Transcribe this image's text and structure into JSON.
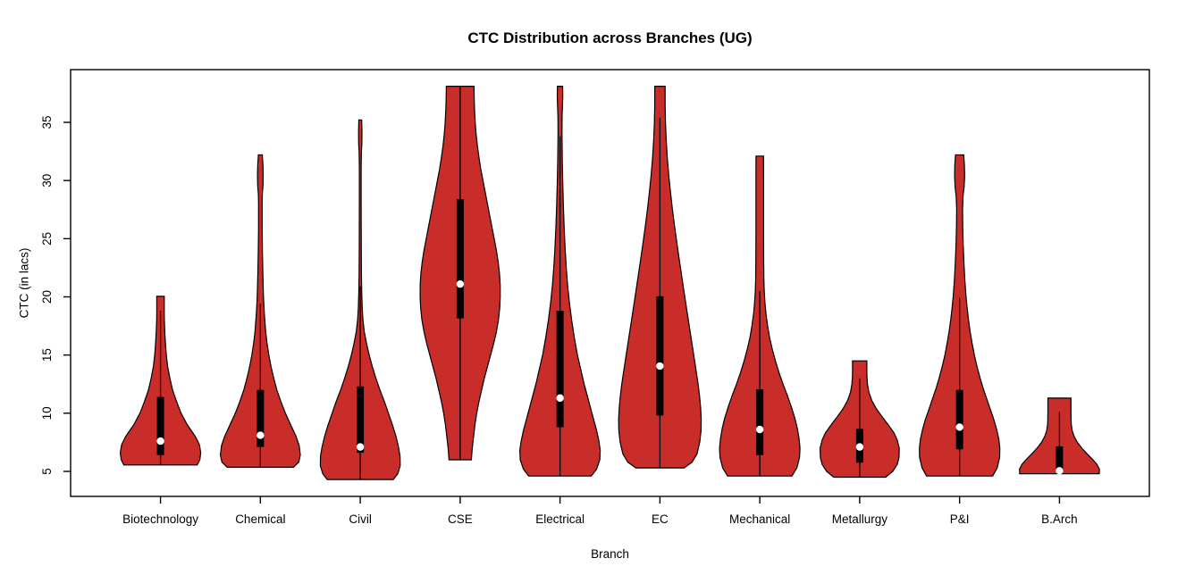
{
  "chart_data": {
    "type": "violin",
    "title": "CTC Distribution across Branches (UG)",
    "xlabel": "Branch",
    "ylabel": "CTC (in lacs)",
    "ylim": [
      2.85,
      39.53
    ],
    "yticks": [
      5,
      10,
      15,
      20,
      25,
      30,
      35
    ],
    "grid": false,
    "legend": "none",
    "categories": [
      "Biotechnology",
      "Chemical",
      "Civil",
      "CSE",
      "Electrical",
      "EC",
      "Mechanical",
      "Metallurgy",
      "P&I",
      "B.Arch"
    ],
    "colors": {
      "violin_fill": "#C82D2A",
      "violin_outline": "#000000",
      "box_fill": "#000000",
      "median_dot": "#FFFFFF",
      "axis": "#000000",
      "background": "#FFFFFF"
    },
    "violins": [
      {
        "label": "Biotechnology",
        "min": 5.55,
        "max": 20.05,
        "q1": 6.4,
        "median": 7.6,
        "q3": 11.4,
        "whisker_low": 5.55,
        "whisker_high": 18.8,
        "profile": [
          [
            5.55,
            41
          ],
          [
            6.0,
            44
          ],
          [
            6.6,
            45
          ],
          [
            7.3,
            43.5
          ],
          [
            8.0,
            39
          ],
          [
            9.0,
            30
          ],
          [
            10.0,
            23
          ],
          [
            11.0,
            18
          ],
          [
            12.0,
            13.5
          ],
          [
            13.0,
            10.5
          ],
          [
            14.0,
            8
          ],
          [
            15.0,
            6.5
          ],
          [
            16.0,
            5.5
          ],
          [
            17.0,
            4.8
          ],
          [
            18.0,
            4.3
          ],
          [
            18.4,
            4.2
          ],
          [
            20.05,
            4.2
          ]
        ]
      },
      {
        "label": "Chemical",
        "min": 5.35,
        "max": 32.2,
        "q1": 7.1,
        "median": 8.1,
        "q3": 12.0,
        "whisker_low": 5.35,
        "whisker_high": 19.4,
        "profile": [
          [
            5.35,
            37
          ],
          [
            5.8,
            43
          ],
          [
            6.4,
            44.7
          ],
          [
            7.2,
            43.5
          ],
          [
            8.0,
            40
          ],
          [
            9.0,
            34
          ],
          [
            10.0,
            28
          ],
          [
            11.0,
            23
          ],
          [
            12.0,
            18.5
          ],
          [
            13.0,
            15
          ],
          [
            14.0,
            12
          ],
          [
            15.0,
            9.5
          ],
          [
            16.0,
            7.5
          ],
          [
            17.0,
            6
          ],
          [
            18.5,
            4.5
          ],
          [
            20.0,
            3.5
          ],
          [
            22.0,
            2.8
          ],
          [
            24.0,
            2.3
          ],
          [
            26.0,
            2.0
          ],
          [
            28.0,
            2.0
          ],
          [
            28.8,
            2.2
          ],
          [
            29.6,
            3.0
          ],
          [
            30.6,
            3.2
          ],
          [
            31.5,
            2.8
          ],
          [
            32.2,
            2.2
          ]
        ]
      },
      {
        "label": "Civil",
        "min": 4.3,
        "max": 35.2,
        "q1": 6.6,
        "median": 7.1,
        "q3": 12.3,
        "whisker_low": 4.3,
        "whisker_high": 20.9,
        "profile": [
          [
            4.3,
            37
          ],
          [
            4.8,
            42
          ],
          [
            5.5,
            44.7
          ],
          [
            6.3,
            44.5
          ],
          [
            7.0,
            43
          ],
          [
            8.0,
            40
          ],
          [
            9.0,
            36
          ],
          [
            10.0,
            31.5
          ],
          [
            11.0,
            27
          ],
          [
            12.0,
            22
          ],
          [
            13.0,
            17.5
          ],
          [
            14.0,
            13.5
          ],
          [
            15.0,
            10
          ],
          [
            16.0,
            7
          ],
          [
            17.0,
            4.5
          ],
          [
            18.0,
            3.0
          ],
          [
            19.0,
            2.2
          ],
          [
            20.5,
            1.6
          ],
          [
            22.0,
            1.3
          ],
          [
            25.0,
            1.1
          ],
          [
            28.0,
            1.0
          ],
          [
            31.0,
            1.0
          ],
          [
            32.5,
            1.3
          ],
          [
            33.2,
            1.8
          ],
          [
            34.2,
            1.9
          ],
          [
            35.2,
            1.6
          ]
        ]
      },
      {
        "label": "CSE",
        "min": 6.0,
        "max": 38.1,
        "q1": 18.15,
        "median": 21.1,
        "q3": 28.4,
        "whisker_low": 6.0,
        "whisker_high": 38.1,
        "profile": [
          [
            6.0,
            12.5
          ],
          [
            7.0,
            13.5
          ],
          [
            8.0,
            15
          ],
          [
            9.0,
            16.5
          ],
          [
            10.0,
            18.5
          ],
          [
            11.0,
            21
          ],
          [
            12.0,
            24
          ],
          [
            13.0,
            27
          ],
          [
            14.0,
            30.5
          ],
          [
            15.0,
            34
          ],
          [
            16.0,
            37.5
          ],
          [
            17.0,
            40.5
          ],
          [
            18.0,
            42.8
          ],
          [
            19.0,
            44.2
          ],
          [
            20.0,
            44.8
          ],
          [
            21.0,
            44.8
          ],
          [
            22.0,
            44
          ],
          [
            23.0,
            42.5
          ],
          [
            24.0,
            40.5
          ],
          [
            25.0,
            38
          ],
          [
            26.0,
            35.5
          ],
          [
            27.0,
            33
          ],
          [
            28.0,
            30.5
          ],
          [
            29.0,
            28
          ],
          [
            30.0,
            25.5
          ],
          [
            31.0,
            23
          ],
          [
            32.0,
            21
          ],
          [
            33.0,
            19.2
          ],
          [
            34.0,
            17.8
          ],
          [
            35.0,
            16.8
          ],
          [
            36.0,
            16.1
          ],
          [
            37.0,
            15.7
          ],
          [
            38.1,
            15.5
          ]
        ]
      },
      {
        "label": "Electrical",
        "min": 4.6,
        "max": 38.1,
        "q1": 8.8,
        "median": 11.3,
        "q3": 18.8,
        "whisker_low": 4.6,
        "whisker_high": 33.8,
        "profile": [
          [
            4.6,
            35
          ],
          [
            5.2,
            41
          ],
          [
            6.0,
            44.5
          ],
          [
            6.8,
            45
          ],
          [
            7.6,
            43.5
          ],
          [
            8.5,
            41
          ],
          [
            9.5,
            37.5
          ],
          [
            10.5,
            34
          ],
          [
            11.5,
            30.5
          ],
          [
            12.5,
            27
          ],
          [
            13.5,
            24
          ],
          [
            15.0,
            19.5
          ],
          [
            16.5,
            16
          ],
          [
            18.0,
            13
          ],
          [
            19.5,
            10.5
          ],
          [
            21.0,
            8.5
          ],
          [
            22.5,
            7
          ],
          [
            24.0,
            5.8
          ],
          [
            26.0,
            4.6
          ],
          [
            28.0,
            3.7
          ],
          [
            30.0,
            3.0
          ],
          [
            32.0,
            2.5
          ],
          [
            34.0,
            2.2
          ],
          [
            35.5,
            2.3
          ],
          [
            36.5,
            2.8
          ],
          [
            37.3,
            3.1
          ],
          [
            38.1,
            2.9
          ]
        ]
      },
      {
        "label": "EC",
        "min": 5.3,
        "max": 38.1,
        "q1": 9.8,
        "median": 14.05,
        "q3": 20.05,
        "whisker_low": 5.3,
        "whisker_high": 35.4,
        "profile": [
          [
            5.3,
            27
          ],
          [
            5.8,
            36
          ],
          [
            6.5,
            41.5
          ],
          [
            7.5,
            44.5
          ],
          [
            8.5,
            46
          ],
          [
            9.5,
            46.2
          ],
          [
            10.5,
            45.5
          ],
          [
            11.5,
            44.3
          ],
          [
            12.5,
            42.7
          ],
          [
            14.0,
            39.8
          ],
          [
            15.5,
            36.8
          ],
          [
            17.0,
            33.8
          ],
          [
            18.5,
            30.8
          ],
          [
            20.0,
            27.8
          ],
          [
            21.5,
            24.9
          ],
          [
            23.0,
            22
          ],
          [
            24.5,
            19.2
          ],
          [
            26.0,
            16.5
          ],
          [
            27.5,
            14
          ],
          [
            29.0,
            11.8
          ],
          [
            30.5,
            9.8
          ],
          [
            32.0,
            8.2
          ],
          [
            33.5,
            7
          ],
          [
            35.0,
            6.2
          ],
          [
            36.5,
            5.8
          ],
          [
            38.1,
            5.8
          ]
        ]
      },
      {
        "label": "Mechanical",
        "min": 4.6,
        "max": 32.1,
        "q1": 6.4,
        "median": 8.6,
        "q3": 12.05,
        "whisker_low": 4.6,
        "whisker_high": 20.5,
        "profile": [
          [
            4.6,
            36
          ],
          [
            5.3,
            41.5
          ],
          [
            6.2,
            44.5
          ],
          [
            7.0,
            45
          ],
          [
            7.8,
            44
          ],
          [
            8.7,
            42
          ],
          [
            9.5,
            39.5
          ],
          [
            10.5,
            35.5
          ],
          [
            11.5,
            31
          ],
          [
            12.5,
            26
          ],
          [
            13.5,
            21.5
          ],
          [
            14.5,
            17.5
          ],
          [
            15.5,
            14
          ],
          [
            16.5,
            11
          ],
          [
            17.5,
            8.8
          ],
          [
            18.5,
            7
          ],
          [
            19.5,
            5.8
          ],
          [
            20.5,
            5.0
          ],
          [
            21.5,
            4.6
          ],
          [
            23.0,
            4.4
          ],
          [
            25.0,
            4.3
          ],
          [
            28.0,
            4.3
          ],
          [
            30.0,
            4.3
          ],
          [
            32.1,
            4.2
          ]
        ]
      },
      {
        "label": "Metallurgy",
        "min": 4.5,
        "max": 14.5,
        "q1": 5.75,
        "median": 7.1,
        "q3": 8.65,
        "whisker_low": 4.5,
        "whisker_high": 13.0,
        "profile": [
          [
            4.5,
            29
          ],
          [
            5.0,
            37
          ],
          [
            5.6,
            42
          ],
          [
            6.2,
            44
          ],
          [
            7.0,
            44.3
          ],
          [
            7.7,
            42
          ],
          [
            8.3,
            38.5
          ],
          [
            9.0,
            32
          ],
          [
            9.7,
            25
          ],
          [
            10.4,
            18.5
          ],
          [
            11.1,
            13.5
          ],
          [
            11.8,
            10.3
          ],
          [
            12.5,
            8.7
          ],
          [
            13.2,
            8.1
          ],
          [
            14.0,
            8.0
          ],
          [
            14.5,
            8.0
          ]
        ]
      },
      {
        "label": "P&I",
        "min": 4.6,
        "max": 32.2,
        "q1": 6.9,
        "median": 8.8,
        "q3": 12.0,
        "whisker_low": 4.6,
        "whisker_high": 19.9,
        "profile": [
          [
            4.6,
            37
          ],
          [
            5.3,
            42
          ],
          [
            6.2,
            44.8
          ],
          [
            7.0,
            45
          ],
          [
            7.8,
            43.8
          ],
          [
            8.6,
            41.5
          ],
          [
            9.4,
            38.5
          ],
          [
            10.3,
            34.5
          ],
          [
            11.2,
            30.5
          ],
          [
            12.1,
            26.5
          ],
          [
            13.0,
            23
          ],
          [
            14.0,
            19.5
          ],
          [
            15.0,
            16.5
          ],
          [
            16.0,
            14
          ],
          [
            17.0,
            11.8
          ],
          [
            18.0,
            10
          ],
          [
            19.0,
            8.5
          ],
          [
            20.0,
            7.2
          ],
          [
            21.5,
            5.8
          ],
          [
            23.0,
            4.8
          ],
          [
            24.5,
            4.0
          ],
          [
            26.0,
            3.5
          ],
          [
            27.5,
            3.3
          ],
          [
            28.6,
            3.8
          ],
          [
            29.4,
            5.0
          ],
          [
            30.3,
            5.6
          ],
          [
            31.3,
            5.4
          ],
          [
            32.2,
            4.6
          ]
        ]
      },
      {
        "label": "B.Arch",
        "min": 4.8,
        "max": 11.3,
        "q1": 5.0,
        "median": 5.05,
        "q3": 7.15,
        "whisker_low": 4.8,
        "whisker_high": 10.1,
        "profile": [
          [
            4.8,
            44.5
          ],
          [
            5.2,
            44.7
          ],
          [
            5.6,
            42
          ],
          [
            6.0,
            37.5
          ],
          [
            6.5,
            31
          ],
          [
            7.0,
            25
          ],
          [
            7.5,
            20
          ],
          [
            8.0,
            16.5
          ],
          [
            8.5,
            14.3
          ],
          [
            9.0,
            13.3
          ],
          [
            9.5,
            13.0
          ],
          [
            10.2,
            12.9
          ],
          [
            11.3,
            12.9
          ]
        ]
      }
    ]
  }
}
